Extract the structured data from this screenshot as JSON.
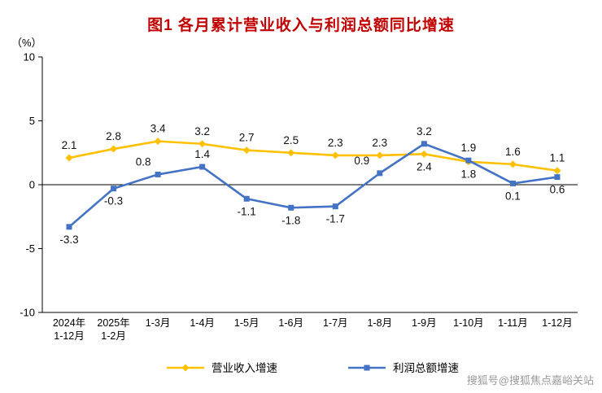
{
  "title": "图1 各月累计营业收入与利润总额同比增速",
  "watermark": "搜狐号@搜狐焦点嘉峪关站",
  "colors": {
    "title": "#C00000",
    "axis": "#000000",
    "revenue_line": "#FFC000",
    "profit_line": "#4472C4",
    "watermark": "#9B9B9B"
  },
  "chart_data": {
    "type": "line",
    "title": "图1 各月累计营业收入与利润总额同比增速",
    "ylabel": "（%）",
    "ylim": [
      -10,
      10
    ],
    "yticks": [
      10,
      5,
      0,
      -5,
      -10
    ],
    "grid": false,
    "legend_position": "bottom",
    "categories": [
      "2024年\n1-12月",
      "2025年\n1-2月",
      "1-3月",
      "1-4月",
      "1-5月",
      "1-6月",
      "1-7月",
      "1-8月",
      "1-9月",
      "1-10月",
      "1-11月",
      "1-12月"
    ],
    "series": [
      {
        "name": "营业收入增速",
        "color": "#FFC000",
        "marker": "diamond",
        "values": [
          2.1,
          2.8,
          3.4,
          3.2,
          2.7,
          2.5,
          2.3,
          2.3,
          2.4,
          1.8,
          1.6,
          1.1
        ],
        "label_side": [
          "above",
          "above",
          "above",
          "above",
          "above",
          "above",
          "above",
          "above",
          "below",
          "below",
          "above",
          "above"
        ],
        "label_dx": [
          0,
          0,
          0,
          0,
          0,
          0,
          0,
          0,
          0,
          0,
          0,
          0
        ]
      },
      {
        "name": "利润总额增速",
        "color": "#4472C4",
        "marker": "square",
        "values": [
          -3.3,
          -0.3,
          0.8,
          1.4,
          -1.1,
          -1.8,
          -1.7,
          0.9,
          3.2,
          1.9,
          0.1,
          0.6
        ],
        "label_side": [
          "below",
          "below",
          "above",
          "above",
          "below",
          "below",
          "below",
          "above",
          "above",
          "above",
          "below",
          "below"
        ],
        "label_dx": [
          0,
          0,
          -18,
          0,
          0,
          0,
          0,
          -22,
          0,
          0,
          0,
          0
        ]
      }
    ]
  }
}
